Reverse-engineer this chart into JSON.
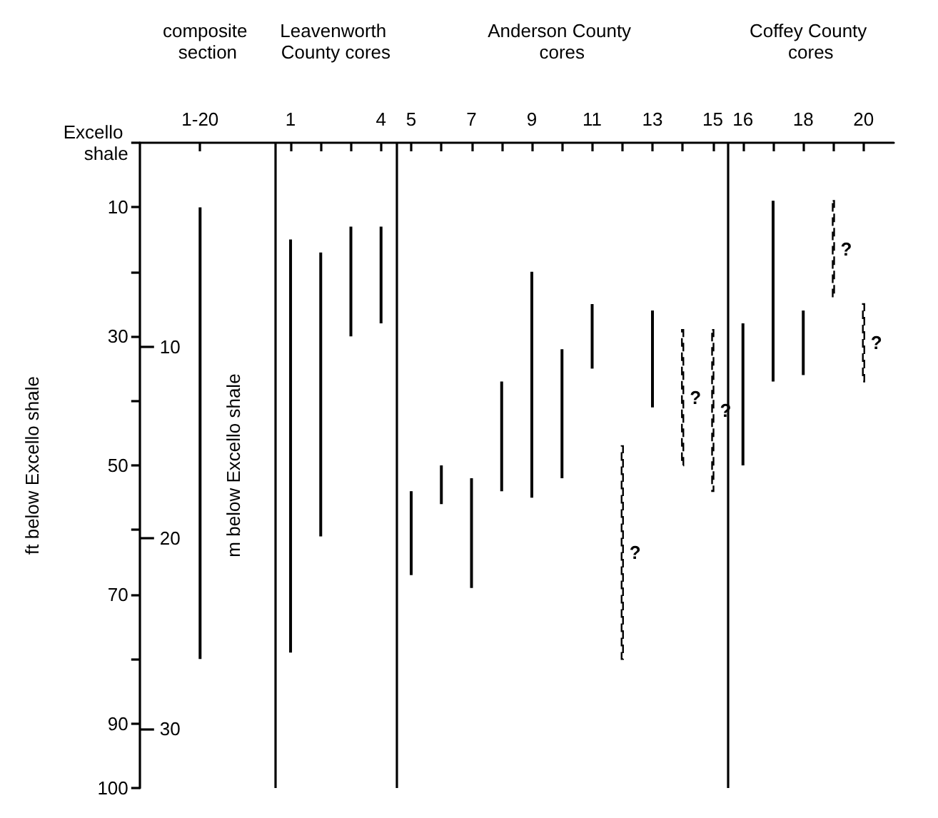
{
  "chart_data": {
    "type": "bar",
    "ylabel": "ft below Excello shale",
    "y2label": "m below Excello shale",
    "annotations": [
      "composite section",
      "Leavenworth County cores",
      "Anderson County cores",
      "Coffey County cores"
    ],
    "xlim": [
      -4,
      21
    ],
    "xticks": [
      {
        "value": -2,
        "label": "1-20"
      },
      1,
      {
        "value": 2,
        "label": null
      },
      {
        "value": 3,
        "label": null
      },
      4,
      5,
      {
        "value": 6,
        "label": null
      },
      7,
      {
        "value": 8,
        "label": null
      },
      9,
      {
        "value": 10,
        "label": null
      },
      11,
      {
        "value": 12,
        "label": null
      },
      13,
      {
        "value": 14,
        "label": null
      },
      15,
      16,
      {
        "value": 17,
        "label": null
      },
      18,
      {
        "value": 19,
        "label": null
      },
      20
    ],
    "ylim": [
      100,
      0
    ],
    "yticks": [
      {
        "value": 0,
        "label": "Excello shale"
      },
      10,
      {
        "value": 20,
        "label": null
      },
      30,
      {
        "value": 40,
        "label": null
      },
      50,
      {
        "value": 60,
        "label": null
      },
      70,
      {
        "value": 80,
        "label": null
      },
      90,
      100
    ],
    "y2lim": [
      33.1,
      -0.7
    ],
    "y2ticks": [
      10,
      20,
      30
    ],
    "ref_lines": [
      {
        "axis": "x",
        "value": 0.5,
        "color": "#000000"
      },
      {
        "axis": "x",
        "value": 4.5,
        "color": "#000000"
      },
      {
        "axis": "x",
        "value": 15.5,
        "color": "#000000"
      }
    ],
    "series": [
      {
        "color": "#000000",
        "line_style": "solid",
        "x": [
          -2,
          1,
          2,
          3,
          4,
          5,
          6,
          7,
          8,
          9,
          10,
          11,
          13,
          16,
          17,
          18
        ],
        "base": [
          10,
          15,
          17,
          13,
          13,
          54,
          50,
          52,
          37,
          20,
          32,
          25,
          26,
          28,
          9,
          26
        ],
        "values": [
          70,
          64,
          44,
          17,
          15,
          13,
          6,
          17,
          17,
          35,
          20,
          10,
          15,
          22,
          28,
          10
        ]
      },
      {
        "color": "#000000",
        "line_style": "dashed",
        "x": [
          12,
          14,
          15,
          19,
          20
        ],
        "base": [
          47,
          29,
          29,
          9,
          25
        ],
        "values": [
          33,
          21,
          25,
          15,
          12
        ],
        "value_labels": [
          "?",
          "?",
          "?",
          "?",
          "?"
        ]
      }
    ]
  }
}
